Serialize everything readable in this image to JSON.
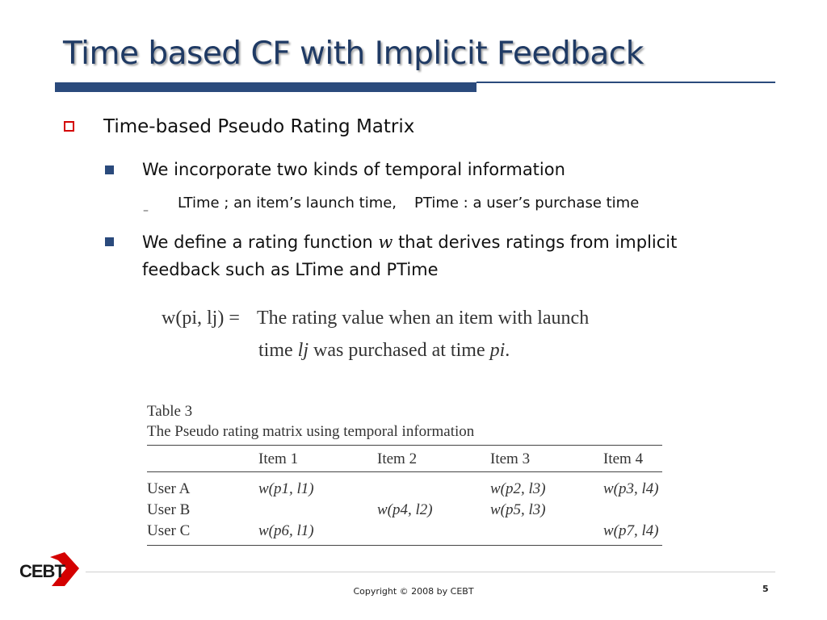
{
  "slide": {
    "title": "Time based CF with Implicit Feedback",
    "bullet1": "Time-based Pseudo Rating Matrix",
    "sub1": "We incorporate two kinds of temporal information",
    "sub1_dash": "–",
    "sub1_item_a": "LTime ; an item’s launch time,",
    "sub1_item_b": "PTime : a user’s purchase time",
    "sub2_pre": "We define a rating function ",
    "sub2_sym": "w",
    "sub2_post": " that derives ratings from implicit",
    "sub2_line2": "feedback such as LTime and PTime"
  },
  "formula": {
    "lhs": "w(pi, lj) =",
    "line1": "The rating value when an item with launch",
    "line2_pre": "time ",
    "line2_lj": "lj",
    "line2_mid": " was purchased at time ",
    "line2_pi": "pi",
    "line2_end": "."
  },
  "table": {
    "caption_line1": "Table 3",
    "caption_line2": "The Pseudo rating matrix using temporal information",
    "headers": [
      "",
      "Item 1",
      "Item 2",
      "Item 3",
      "Item 4"
    ],
    "rows": [
      [
        "User A",
        "w(p1, l1)",
        "",
        "w(p2, l3)",
        "w(p3, l4)"
      ],
      [
        "User B",
        "",
        "w(p4, l2)",
        "w(p5, l3)",
        ""
      ],
      [
        "User C",
        "w(p6, l1)",
        "",
        "",
        "w(p7, l4)"
      ]
    ]
  },
  "footer": {
    "logo": "CEBT",
    "copyright": "Copyright © 2008 by CEBT",
    "page": "5"
  },
  "colors": {
    "title": "#1f3a64",
    "rule": "#2a4a7c",
    "bullet_box": "#d40000",
    "logo_red": "#d40000"
  }
}
